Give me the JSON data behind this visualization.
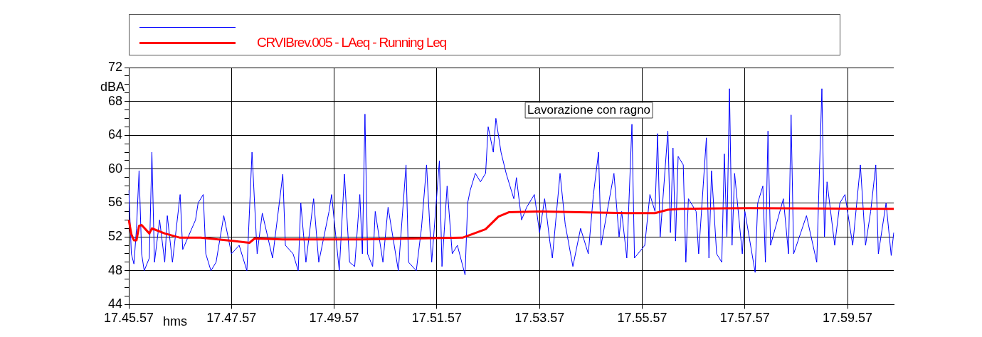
{
  "chart_data": {
    "type": "line",
    "xlabel": "hms",
    "ylabel": "dBA",
    "legend": "top",
    "grid": true,
    "marker": "none",
    "line_style": "solid",
    "categories": [
      "17.45.57",
      null,
      null,
      null,
      null,
      null,
      null,
      null,
      null,
      null,
      null,
      null,
      null,
      null,
      null,
      null,
      null,
      null,
      null,
      null,
      null,
      null,
      null,
      null,
      null,
      null,
      null,
      null,
      null,
      null,
      null,
      null,
      null,
      null,
      null,
      null,
      null,
      null,
      null,
      null,
      "17.47.57",
      null,
      null,
      null,
      null,
      null,
      null,
      null,
      null,
      null,
      null,
      null,
      null,
      null,
      null,
      null,
      null,
      null,
      null,
      null,
      null,
      null,
      null,
      null,
      null,
      null,
      null,
      null,
      null,
      null,
      null,
      null,
      null,
      null,
      null,
      null,
      null,
      null,
      null,
      null,
      "17.49.57",
      null,
      null,
      null,
      null,
      null,
      null,
      null,
      null,
      null,
      null,
      null,
      null,
      null,
      null,
      null,
      null,
      null,
      null,
      null,
      null,
      null,
      null,
      null,
      null,
      null,
      null,
      null,
      null,
      null,
      null,
      null,
      null,
      null,
      null,
      null,
      null,
      null,
      null,
      null,
      "17.51.57",
      null,
      null,
      null,
      null,
      null,
      null,
      null,
      null,
      null,
      null,
      null,
      null,
      null,
      null,
      null,
      null,
      null,
      null,
      null,
      null,
      null,
      null,
      null,
      null,
      null,
      null,
      null,
      null,
      null,
      null,
      null,
      null,
      null,
      null,
      null,
      null,
      null,
      null,
      null,
      "17.53.57",
      null,
      null,
      null,
      null,
      null,
      null,
      null,
      null,
      null,
      null,
      null,
      null,
      null,
      null,
      null,
      null,
      null,
      null,
      null,
      null,
      null,
      null,
      null,
      null,
      null,
      null,
      null,
      null,
      null,
      null,
      null,
      null,
      null,
      null,
      null,
      null,
      null,
      null,
      null,
      "17.55.57",
      null,
      null,
      null,
      null,
      null,
      null,
      null,
      null,
      null,
      null,
      null,
      null,
      null,
      null,
      null,
      null,
      null,
      null,
      null,
      null,
      null,
      null,
      null,
      null,
      null,
      null,
      null,
      null,
      null,
      null,
      null,
      null,
      null,
      null,
      null,
      null,
      null,
      null,
      null,
      "17.57.57",
      null,
      null,
      null,
      null,
      null,
      null,
      null,
      null,
      null,
      null,
      null,
      null,
      null,
      null,
      null,
      null,
      null,
      null,
      null,
      null,
      null,
      null,
      null,
      null,
      null,
      null,
      null,
      null,
      null,
      null,
      null,
      null,
      null,
      null,
      null,
      null,
      null,
      null,
      null,
      "17.59.57",
      null,
      null,
      null,
      null,
      null,
      null,
      null,
      null,
      null,
      null,
      null,
      null,
      null,
      null,
      null,
      null,
      null,
      null
    ],
    "ylim": [
      44,
      72
    ],
    "yticks": [
      44,
      {
        "value": 45,
        "label": null
      },
      {
        "value": 46,
        "label": null
      },
      {
        "value": 47,
        "label": null
      },
      48,
      {
        "value": 49,
        "label": null
      },
      {
        "value": 50,
        "label": null
      },
      {
        "value": 51,
        "label": null
      },
      52,
      {
        "value": 53,
        "label": null
      },
      {
        "value": 54,
        "label": null
      },
      {
        "value": 55,
        "label": null
      },
      56,
      {
        "value": 57,
        "label": null
      },
      {
        "value": 58,
        "label": null
      },
      {
        "value": 59,
        "label": null
      },
      60,
      {
        "value": 61,
        "label": null
      },
      {
        "value": 62,
        "label": null
      },
      {
        "value": 63,
        "label": null
      },
      64,
      {
        "value": 65,
        "label": null
      },
      {
        "value": 66,
        "label": null
      },
      {
        "value": 67,
        "label": null
      },
      68,
      {
        "value": 69,
        "label": null
      },
      {
        "value": 70,
        "label": null
      },
      {
        "value": 71,
        "label": null
      },
      72
    ],
    "annotations": [
      "Lavorazione con ragno"
    ],
    "series": [
      {
        "color": "#0000ff",
        "values": [
          57.5,
          50,
          48.8,
          53,
          59.8,
          50,
          48,
          null,
          49.5,
          62,
          49,
          null,
          54,
          null,
          49,
          54.5,
          null,
          49,
          null,
          null,
          57,
          50.5,
          null,
          null,
          null,
          null,
          54,
          56,
          null,
          57,
          50,
          null,
          48,
          null,
          49,
          null,
          null,
          54.5,
          null,
          null,
          50,
          null,
          null,
          51,
          null,
          null,
          48,
          null,
          62,
          null,
          50,
          null,
          54.8,
          null,
          null,
          null,
          49.5,
          null,
          null,
          null,
          59.4,
          51,
          null,
          null,
          50,
          null,
          48,
          56,
          null,
          49,
          null,
          null,
          56.5,
          null,
          49,
          null,
          null,
          null,
          55,
          57,
          null,
          null,
          48,
          null,
          59.4,
          null,
          49,
          null,
          48.5,
          null,
          57,
          50,
          66.5,
          50,
          null,
          48.5,
          55,
          null,
          null,
          49,
          null,
          55.5,
          null,
          null,
          null,
          48,
          null,
          null,
          60.5,
          49,
          null,
          null,
          48,
          null,
          53,
          null,
          60.5,
          null,
          49,
          null,
          null,
          61,
          48.5,
          null,
          58,
          null,
          50,
          null,
          51,
          null,
          null,
          47.5,
          56,
          57.5,
          null,
          59.5,
          null,
          58.5,
          null,
          59.5,
          65,
          null,
          62,
          66,
          null,
          62,
          null,
          59.5,
          null,
          null,
          56.5,
          59,
          null,
          54,
          null,
          55.5,
          null,
          null,
          57,
          null,
          52.5,
          null,
          56.5,
          null,
          51.5,
          49.5,
          null,
          null,
          59.5,
          null,
          53.5,
          null,
          null,
          48.5,
          null,
          null,
          53,
          null,
          null,
          50,
          null,
          57,
          null,
          62,
          51,
          null,
          null,
          null,
          null,
          59.5,
          null,
          52,
          55,
          null,
          49.5,
          null,
          65.3,
          49.5,
          null,
          null,
          null,
          51,
          null,
          57,
          null,
          55,
          64.2,
          52,
          null,
          null,
          64.5,
          52.5,
          62.5,
          51.5,
          61.5,
          null,
          60.5,
          49,
          56.5,
          null,
          null,
          55,
          50,
          null,
          null,
          63.7,
          49.5,
          59.8,
          null,
          50,
          null,
          49,
          61.8,
          52,
          69.5,
          51,
          59.5,
          null,
          null,
          50,
          55,
          null,
          null,
          null,
          47.8,
          56,
          null,
          58,
          49,
          64.5,
          51,
          null,
          null,
          null,
          null,
          56.5,
          null,
          50,
          66.4,
          50,
          null,
          null,
          null,
          null,
          54.5,
          null,
          null,
          null,
          49,
          null,
          69.5,
          52,
          58.5,
          null,
          null,
          51,
          null,
          56,
          null,
          57,
          null,
          null,
          51,
          null,
          null,
          60.5,
          null,
          51,
          null,
          55,
          null,
          60.5,
          50,
          null,
          null,
          56,
          null,
          49.8,
          52.5
        ]
      },
      {
        "name": "CRVIBrev.005 - LAeq - Running Leq",
        "color": "#ff0000",
        "values": [
          54,
          52.3,
          51.6,
          51.6,
          53.3,
          53.4,
          null,
          null,
          52.4,
          53,
          null,
          null,
          null,
          null,
          52.4,
          null,
          null,
          null,
          null,
          null,
          51.9,
          null,
          null,
          null,
          null,
          null,
          null,
          null,
          51.9,
          null,
          null,
          null,
          null,
          null,
          null,
          null,
          null,
          null,
          null,
          null,
          null,
          51.5,
          null,
          null,
          null,
          null,
          null,
          51.3,
          null,
          51.8,
          null,
          null,
          null,
          null,
          null,
          null,
          null,
          null,
          null,
          null,
          51.7,
          null,
          null,
          null,
          null,
          null,
          null,
          null,
          null,
          null,
          null,
          null,
          null,
          null,
          null,
          null,
          null,
          null,
          null,
          null,
          null,
          null,
          null,
          null,
          null,
          null,
          null,
          null,
          null,
          null,
          null,
          51.7,
          null,
          null,
          null,
          null,
          null,
          null,
          null,
          null,
          null,
          null,
          null,
          null,
          null,
          null,
          null,
          null,
          null,
          null,
          null,
          null,
          null,
          null,
          null,
          null,
          null,
          null,
          null,
          null,
          null,
          null,
          null,
          null,
          null,
          null,
          null,
          null,
          null,
          null,
          51.9,
          null,
          null,
          null,
          null,
          null,
          null,
          null,
          null,
          52.9,
          null,
          null,
          null,
          null,
          54.4,
          null,
          null,
          null,
          54.9,
          null,
          null,
          null,
          null,
          null,
          null,
          null,
          null,
          null,
          null,
          55,
          null,
          null,
          null,
          null,
          null,
          null,
          null,
          null,
          null,
          null,
          null,
          null,
          null,
          null,
          null,
          null,
          null,
          null,
          null,
          null,
          null,
          null,
          null,
          null,
          null,
          null,
          null,
          null,
          null,
          null,
          null,
          null,
          null,
          null,
          54.8,
          null,
          null,
          null,
          null,
          null,
          null,
          null,
          null,
          null,
          null,
          54.8,
          null,
          null,
          null,
          null,
          55.2,
          null,
          null,
          null,
          null,
          55.3,
          null,
          null,
          null,
          null,
          null,
          null,
          null,
          null,
          null,
          null,
          null,
          null,
          null,
          null,
          null,
          null,
          null,
          null,
          null,
          null,
          null,
          null,
          null,
          null,
          null,
          null,
          55.4,
          null,
          null,
          null,
          null,
          null,
          null,
          null,
          null,
          null,
          null,
          null,
          null,
          null,
          null,
          null,
          null,
          null,
          null,
          null,
          null,
          null,
          null,
          null,
          null,
          null,
          null,
          null,
          null,
          null,
          null,
          null,
          null,
          null,
          null,
          null,
          null,
          null,
          null,
          null,
          null,
          null,
          null,
          null,
          null,
          null,
          null,
          null,
          null,
          null,
          null,
          null,
          null,
          null,
          null,
          null,
          55.3
        ]
      }
    ]
  }
}
